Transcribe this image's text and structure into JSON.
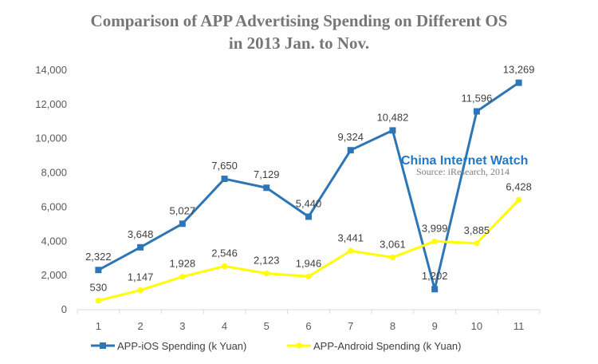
{
  "chart_data": {
    "type": "line",
    "title": "Comparison of APP Advertising Spending on Different OS",
    "subtitle": "in 2013 Jan. to Nov.",
    "categories": [
      "1",
      "2",
      "3",
      "4",
      "5",
      "6",
      "7",
      "8",
      "9",
      "10",
      "11"
    ],
    "y_ticks": [
      "0",
      "2,000",
      "4,000",
      "6,000",
      "8,000",
      "10,000",
      "12,000",
      "14,000"
    ],
    "ylim": [
      0,
      14000
    ],
    "grid": false,
    "legend_position": "bottom",
    "series": [
      {
        "name": "APP-iOS Spending (k Yuan)",
        "color": "#2e75b6",
        "marker": "square",
        "values": [
          2322,
          3648,
          5027,
          7650,
          7129,
          5440,
          9324,
          10482,
          1202,
          11596,
          13269
        ],
        "labels": [
          "2,322",
          "3,648",
          "5,027",
          "7,650",
          "7,129",
          "5,440",
          "9,324",
          "10,482",
          "1,202",
          "11,596",
          "13,269"
        ]
      },
      {
        "name": "APP-Android Spending (k Yuan)",
        "color": "#ffff00",
        "marker": "circle",
        "values": [
          530,
          1147,
          1928,
          2546,
          2123,
          1946,
          3441,
          3061,
          3999,
          3885,
          6428
        ],
        "labels": [
          "530",
          "1,147",
          "1,928",
          "2,546",
          "2,123",
          "1,946",
          "3,441",
          "3,061",
          "3,999",
          "3,885",
          "6,428"
        ]
      }
    ]
  },
  "watermark": {
    "brand": "China Internet Watch",
    "source": "Source: iResearch, 2014"
  }
}
